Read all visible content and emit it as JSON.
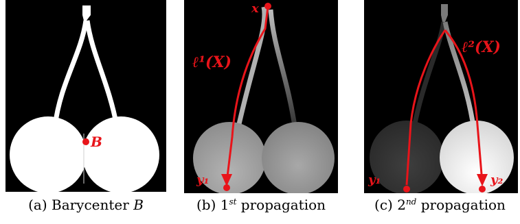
{
  "panels": {
    "a": {
      "caption_prefix": "(a) Barycenter ",
      "caption_var": "B",
      "point_label": "B"
    },
    "b": {
      "caption_prefix": "(b) 1",
      "caption_sup": "st",
      "caption_suffix": " propagation",
      "label_top": "x",
      "label_curve": "ℓ¹(X)",
      "label_end": "y₁"
    },
    "c": {
      "caption_prefix": "(c) 2",
      "caption_sup": "nd",
      "caption_suffix": " propagation",
      "label_curve": "ℓ²(X)",
      "label_end1": "y₁",
      "label_end2": "y₂"
    }
  },
  "colors": {
    "background": "#000000",
    "shape": "#ffffff",
    "annotation": "#e8141a"
  }
}
